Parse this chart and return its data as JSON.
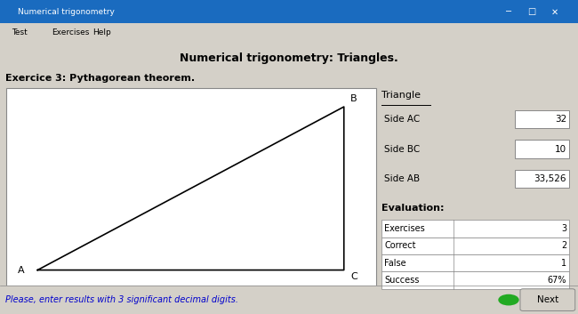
{
  "title": "Numerical trigonometry: Triangles.",
  "exercise_label": "Exercice 3: Pythagorean theorem.",
  "menu_items": [
    "Test",
    "Exercises",
    "Help"
  ],
  "window_title": "Numerical trigonometry",
  "vertex_labels": [
    "A",
    "B",
    "C"
  ],
  "side_labels": [
    "Side AC",
    "Side BC",
    "Side AB"
  ],
  "side_values": [
    "32",
    "10",
    "33,526"
  ],
  "triangle_label": "Triangle",
  "eval_label": "Evaluation:",
  "eval_rows": [
    "Exercises",
    "Correct",
    "False",
    "Success"
  ],
  "eval_values": [
    "3",
    "2",
    "1",
    "67%"
  ],
  "bottom_text": "Please, enter results with 3 significant decimal digits.",
  "bg_color": "#d4d0c8",
  "canvas_bg": "#ffffff",
  "input_bg": "#ffffff",
  "title_color": "#000000",
  "bottom_text_color": "#0000cc",
  "next_btn_color": "#d4d0c8",
  "titlebar_color": "#1a6bbf",
  "figsize": [
    6.5,
    3.53
  ],
  "dpi": 100
}
